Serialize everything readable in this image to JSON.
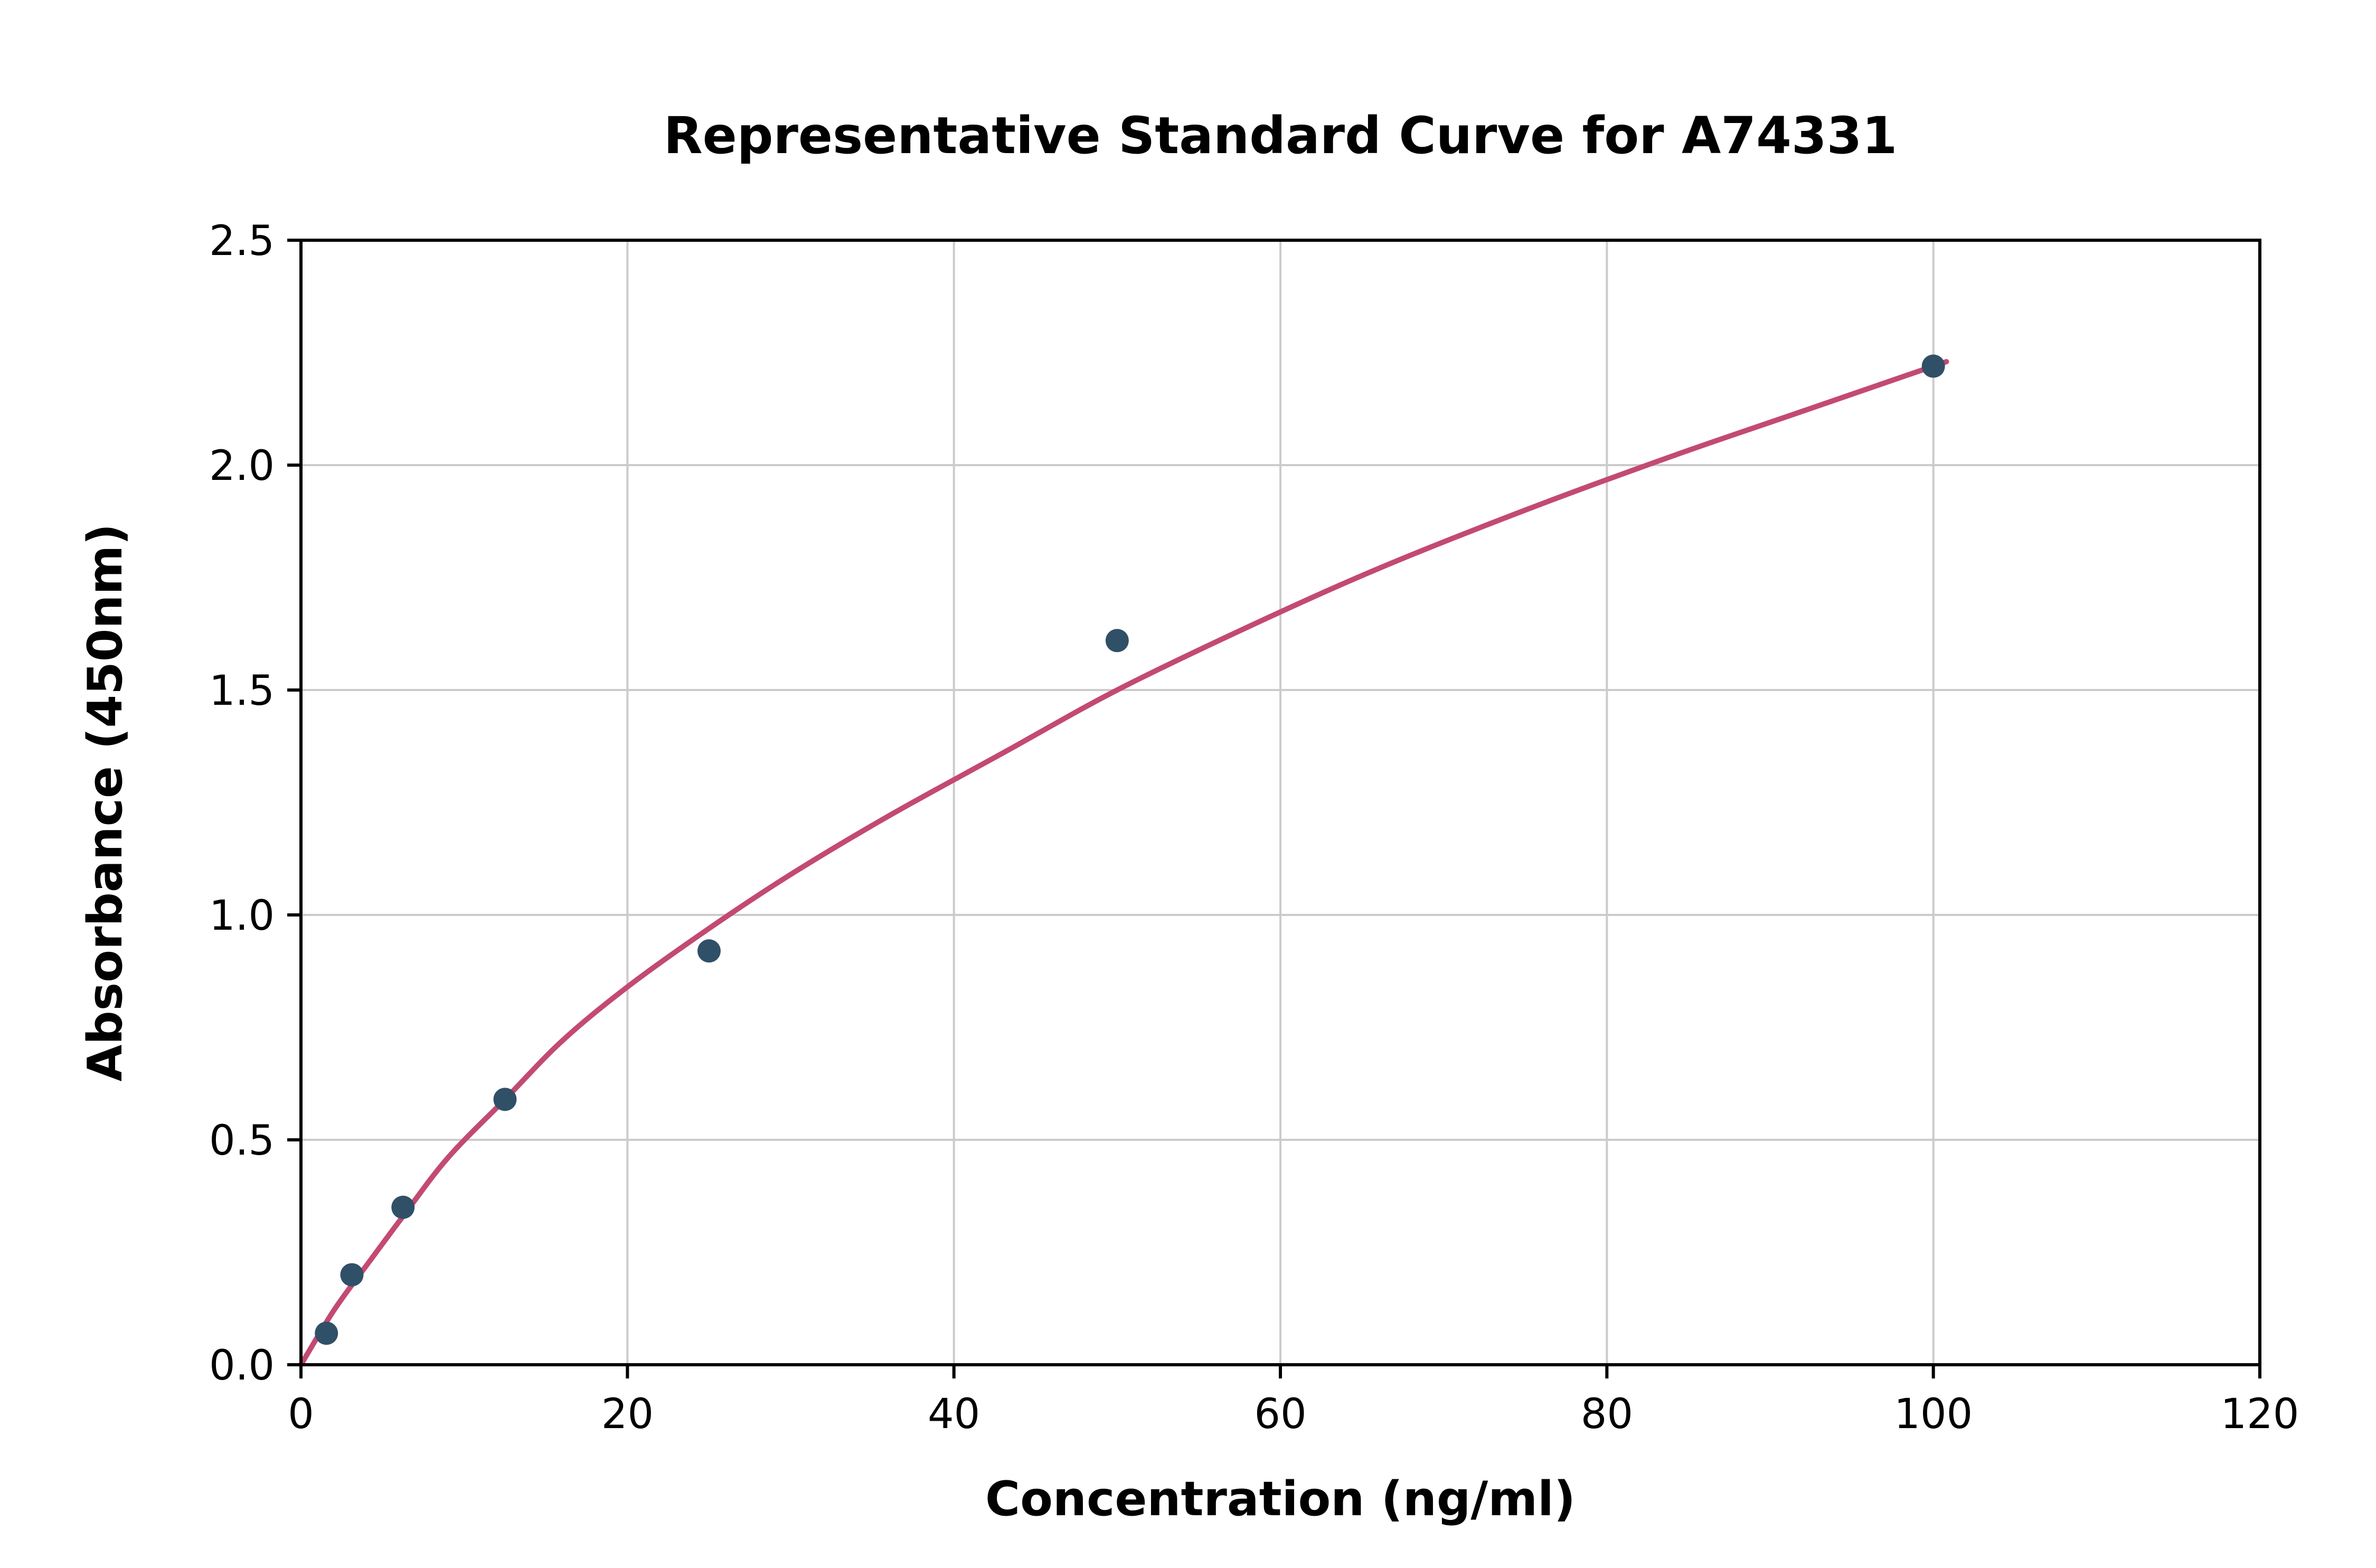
{
  "chart_data": {
    "type": "scatter",
    "title": "Representative Standard Curve for A74331",
    "xlabel": "Concentration (ng/ml)",
    "ylabel": "Absorbance (450nm)",
    "xlim": [
      0,
      120
    ],
    "ylim": [
      0,
      2.5
    ],
    "xticks": [
      0,
      20,
      40,
      60,
      80,
      100,
      120
    ],
    "xtick_labels": [
      "0",
      "20",
      "40",
      "60",
      "80",
      "100",
      "120"
    ],
    "yticks": [
      0.0,
      0.5,
      1.0,
      1.5,
      2.0,
      2.5
    ],
    "ytick_labels": [
      "0.0",
      "0.5",
      "1.0",
      "1.5",
      "2.0",
      "2.5"
    ],
    "grid": true,
    "legend": "none",
    "points": [
      {
        "x": 1.56,
        "y": 0.07
      },
      {
        "x": 3.12,
        "y": 0.2
      },
      {
        "x": 6.25,
        "y": 0.35
      },
      {
        "x": 12.5,
        "y": 0.59
      },
      {
        "x": 25,
        "y": 0.92
      },
      {
        "x": 50,
        "y": 1.61
      },
      {
        "x": 100,
        "y": 2.22
      }
    ],
    "fit_curve": {
      "x": [
        0,
        2,
        4,
        6.25,
        9,
        12.5,
        16,
        20,
        25,
        30,
        36,
        43,
        50,
        58,
        66,
        75,
        84,
        92,
        100.8
      ],
      "y": [
        0.0,
        0.12,
        0.22,
        0.33,
        0.46,
        0.59,
        0.72,
        0.84,
        0.97,
        1.09,
        1.22,
        1.36,
        1.5,
        1.64,
        1.77,
        1.9,
        2.02,
        2.12,
        2.23
      ]
    },
    "colors": {
      "point": "#305068",
      "curve": "#c34a72",
      "grid": "#cbcbcb",
      "axis": "#000000",
      "background": "#ffffff"
    }
  }
}
